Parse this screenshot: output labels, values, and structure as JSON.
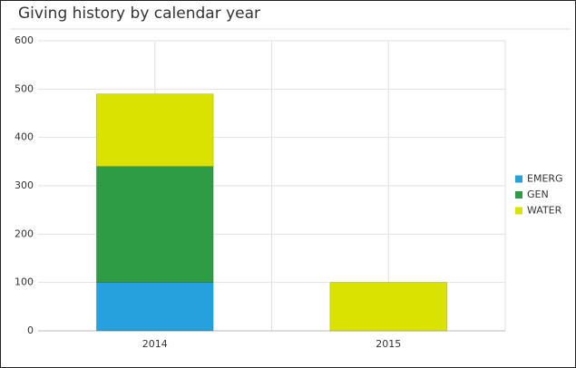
{
  "chart_data": {
    "type": "stacked_bar",
    "title": "Giving history by calendar year",
    "categories": [
      "2014",
      "2015"
    ],
    "series": [
      {
        "name": "EMERG",
        "color": "#27a1dd",
        "values": [
          100,
          0
        ]
      },
      {
        "name": "GEN",
        "color": "#2e9b45",
        "values": [
          240,
          0
        ]
      },
      {
        "name": "WATER",
        "color": "#d9e200",
        "values": [
          150,
          100
        ]
      }
    ],
    "ylim": [
      0,
      600
    ],
    "yticks": [
      0,
      100,
      200,
      300,
      400,
      500,
      600
    ],
    "grid": true,
    "legend": "right"
  }
}
